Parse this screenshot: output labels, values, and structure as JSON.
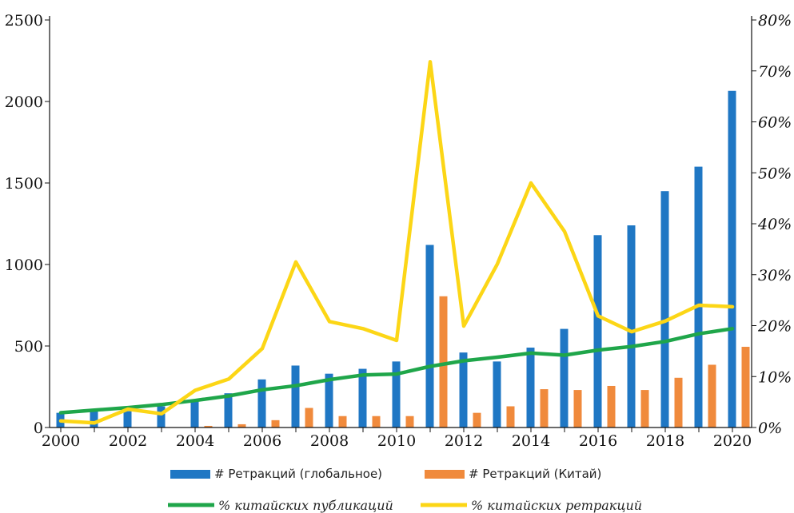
{
  "chart_data": {
    "type": "bar",
    "x": [
      2000,
      2001,
      2002,
      2003,
      2004,
      2005,
      2006,
      2007,
      2008,
      2009,
      2010,
      2011,
      2012,
      2013,
      2014,
      2015,
      2016,
      2017,
      2018,
      2019,
      2020
    ],
    "x_tick_labels": [
      "2000",
      "2002",
      "2004",
      "2006",
      "2008",
      "2010",
      "2012",
      "2014",
      "2016",
      "2018",
      "2020"
    ],
    "left_axis": {
      "ylim": [
        0,
        2500
      ],
      "ticks": [
        0,
        500,
        1000,
        1500,
        2000,
        2500
      ],
      "tick_labels": [
        "0",
        "500",
        "1000",
        "1500",
        "2000",
        "2500"
      ]
    },
    "right_axis": {
      "ylim": [
        0,
        80
      ],
      "ticks": [
        0,
        10,
        20,
        30,
        40,
        50,
        60,
        70,
        80
      ],
      "tick_labels": [
        "0%",
        "10%",
        "20%",
        "30%",
        "40%",
        "50%",
        "60%",
        "70%",
        "80%"
      ]
    },
    "series": [
      {
        "name": "# Ретракций (глобальное)",
        "type": "bar",
        "axis": "left",
        "color": "#1f77c4",
        "values": [
          90,
          100,
          100,
          130,
          170,
          210,
          295,
          380,
          330,
          360,
          405,
          1120,
          460,
          405,
          490,
          605,
          1180,
          1240,
          1450,
          1600,
          2065
        ]
      },
      {
        "name": "# Ретракций (Китай)",
        "type": "bar",
        "axis": "left",
        "color": "#f08a3c",
        "values": [
          0,
          0,
          0,
          0,
          10,
          20,
          45,
          120,
          70,
          70,
          70,
          805,
          90,
          130,
          235,
          230,
          255,
          230,
          305,
          385,
          495
        ]
      },
      {
        "name": "% китайских публикаций",
        "type": "line",
        "axis": "right",
        "color": "#1fa64a",
        "values": [
          2.9,
          3.4,
          3.9,
          4.5,
          5.3,
          6.2,
          7.4,
          8.2,
          9.4,
          10.3,
          10.5,
          12.0,
          13.1,
          13.8,
          14.6,
          14.2,
          15.2,
          15.9,
          16.9,
          18.4,
          19.4
        ]
      },
      {
        "name": "% китайских ретракций",
        "type": "line",
        "axis": "right",
        "color": "#fcd616",
        "values": [
          1.3,
          0.9,
          3.6,
          2.7,
          7.3,
          9.5,
          15.5,
          32.5,
          20.8,
          19.4,
          17.1,
          71.8,
          19.9,
          32.1,
          48.0,
          38.5,
          21.9,
          18.8,
          20.9,
          24.0,
          23.7
        ]
      }
    ]
  }
}
